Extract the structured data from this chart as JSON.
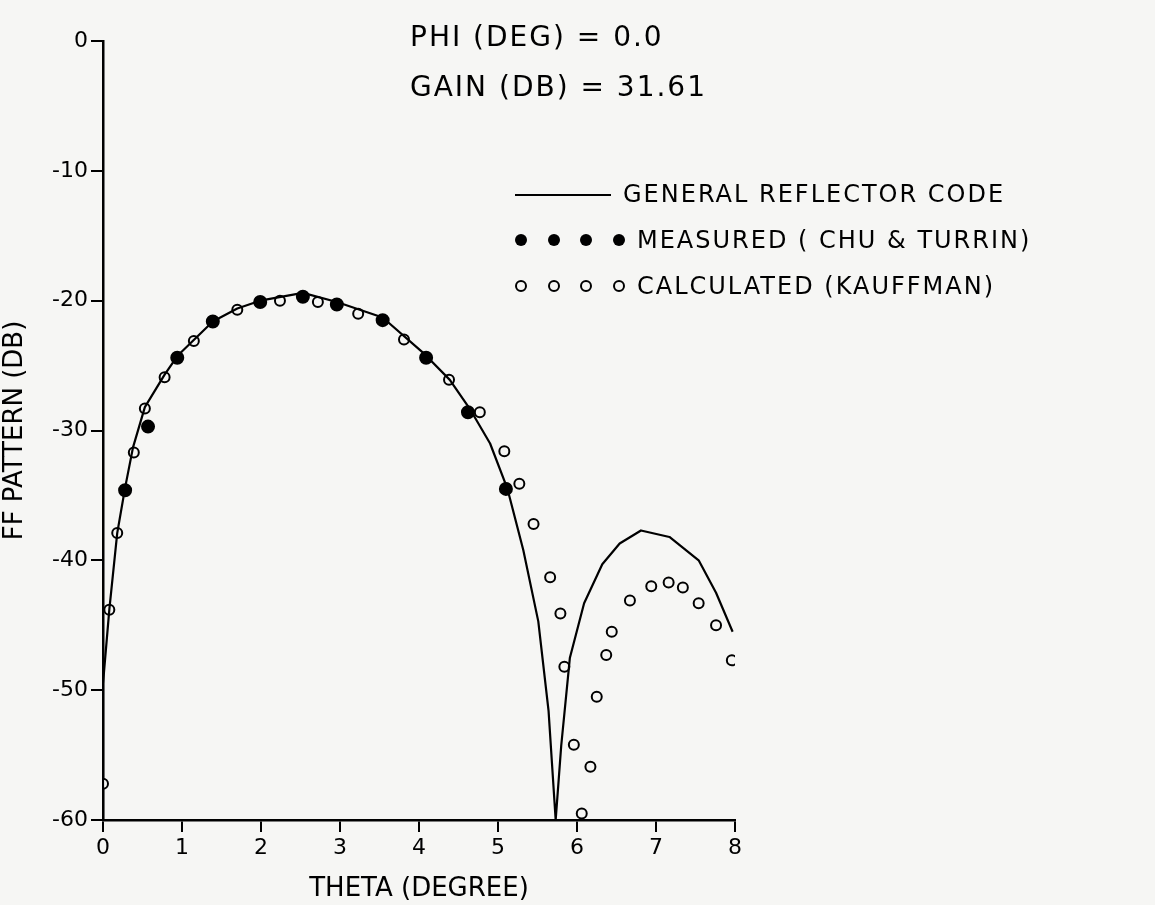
{
  "chart_data": {
    "type": "line",
    "xlabel": "THETA (DEGREE)",
    "ylabel": "FF PATTERN (DB)",
    "annotations": [
      "PHI (DEG) = 0.0",
      "GAIN (DB) = 31.61"
    ],
    "xlim": [
      0,
      8
    ],
    "xticks": [
      0,
      1,
      2,
      3,
      4,
      5,
      6,
      7,
      8
    ],
    "ylim": [
      -60,
      0
    ],
    "yticks": [
      -60,
      -50,
      -40,
      -30,
      -20,
      -10,
      0
    ],
    "grid": false,
    "legend": "right",
    "series": [
      {
        "name": "GENERAL REFLECTOR CODE",
        "color": "#000000",
        "marker": "none",
        "line_style": "solid",
        "x": [
          0,
          0.0,
          0.08,
          0.18,
          0.28,
          0.38,
          0.53,
          0.78,
          0.95,
          1.39,
          1.7,
          1.99,
          2.53,
          2.96,
          3.54,
          4.05,
          4.39,
          4.65,
          4.9,
          5.12,
          5.32,
          5.51,
          5.64,
          5.73,
          5.8,
          5.91,
          6.09,
          6.32,
          6.54,
          6.81,
          7.17,
          7.54,
          7.76,
          7.97
        ],
        "values": [
          -60,
          -49.5,
          -43.8,
          -37.9,
          -34.4,
          -31.3,
          -28.2,
          -25.7,
          -24.2,
          -21.6,
          -20.6,
          -20.0,
          -19.4,
          -20.1,
          -21.3,
          -24.0,
          -26.1,
          -28.4,
          -31.0,
          -34.5,
          -39.2,
          -44.7,
          -51.6,
          -60,
          -54.3,
          -47.5,
          -43.3,
          -40.3,
          -38.7,
          -37.7,
          -38.2,
          -40.0,
          -42.5,
          -45.5
        ]
      },
      {
        "name": "MEASURED ( CHU & TURRIN)",
        "type": "scatter",
        "color": "#000000",
        "marker": "circle",
        "x": [
          0.28,
          0.57,
          0.94,
          1.39,
          1.99,
          2.53,
          2.96,
          3.54,
          4.09,
          4.62,
          5.1
        ],
        "values": [
          -34.6,
          -29.7,
          -24.4,
          -21.6,
          -20.1,
          -19.7,
          -20.3,
          -21.5,
          -24.4,
          -28.6,
          -34.5
        ]
      },
      {
        "name": "CALCULATED (KAUFFMAN)",
        "type": "scatter",
        "color": "#000000",
        "marker": "circle",
        "x": [
          0,
          0.08,
          0.18,
          0.39,
          0.53,
          0.78,
          1.15,
          1.7,
          2.24,
          2.72,
          3.23,
          3.81,
          4.38,
          4.77,
          5.08,
          5.27,
          5.45,
          5.66,
          5.79,
          5.84,
          5.96,
          6.06,
          6.17,
          6.25,
          6.37,
          6.44,
          6.67,
          6.94,
          7.16,
          7.34,
          7.54,
          7.76,
          7.96
        ],
        "values": [
          -57.2,
          -43.8,
          -37.9,
          -31.7,
          -28.3,
          -25.9,
          -23.1,
          -20.7,
          -20.0,
          -20.1,
          -21.0,
          -23.0,
          -26.1,
          -28.6,
          -31.6,
          -34.1,
          -37.2,
          -41.3,
          -44.1,
          -48.2,
          -54.2,
          -59.5,
          -55.9,
          -50.5,
          -47.3,
          -45.5,
          -43.1,
          -42.0,
          -41.7,
          -42.1,
          -43.3,
          -45.0,
          -47.7
        ]
      }
    ]
  }
}
